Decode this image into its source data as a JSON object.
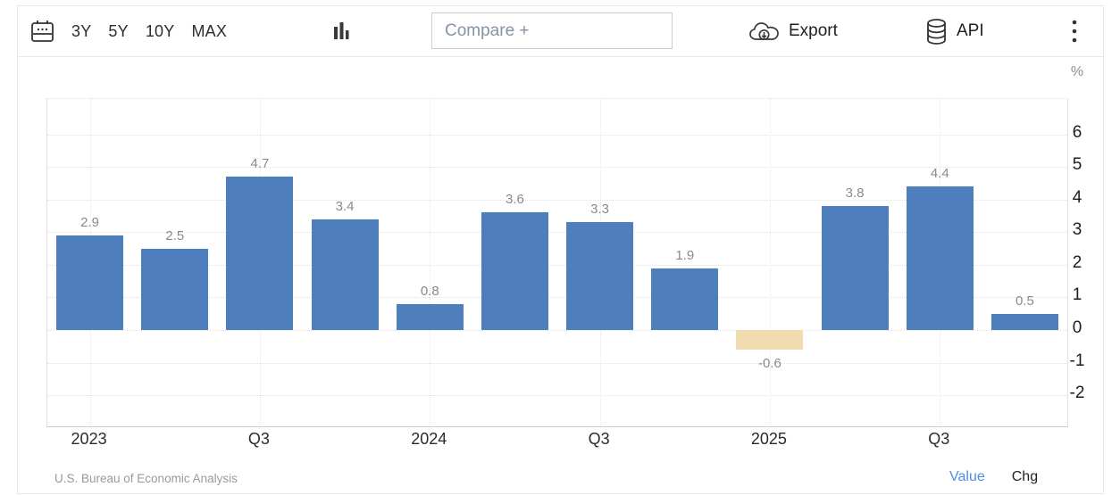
{
  "toolbar": {
    "range_buttons": [
      {
        "label": "3Y"
      },
      {
        "label": "5Y"
      },
      {
        "label": "10Y"
      },
      {
        "label": "MAX"
      }
    ],
    "compare_placeholder": "Compare +",
    "export_label": "Export",
    "api_label": "API"
  },
  "chart_data": {
    "type": "bar",
    "unit_label": "%",
    "values": [
      2.9,
      2.5,
      4.7,
      3.4,
      0.8,
      3.6,
      3.3,
      1.9,
      -0.6,
      3.8,
      4.4,
      0.5
    ],
    "bar_labels": [
      "2.9",
      "2.5",
      "4.7",
      "3.4",
      "0.8",
      "3.6",
      "3.3",
      "1.9",
      "-0.6",
      "3.8",
      "4.4",
      "0.5"
    ],
    "x_tick_labels": [
      "2023",
      "Q3",
      "2024",
      "Q3",
      "2025",
      "Q3"
    ],
    "x_tick_bar_indices": [
      0,
      2,
      4,
      6,
      8,
      10
    ],
    "y_ticks": [
      6,
      5,
      4,
      3,
      2,
      1,
      0,
      -1,
      -2
    ],
    "ylim": [
      -2.95,
      7.08
    ],
    "grid": "dotted",
    "legend_position": "none",
    "colors": {
      "positive_bar": "#4e7ebc",
      "negative_bar": "#f1dcb0",
      "value_label": "#8a8a8a"
    }
  },
  "footer": {
    "source": "U.S. Bureau of Economic Analysis",
    "value_label": "Value",
    "chg_label": "Chg"
  }
}
